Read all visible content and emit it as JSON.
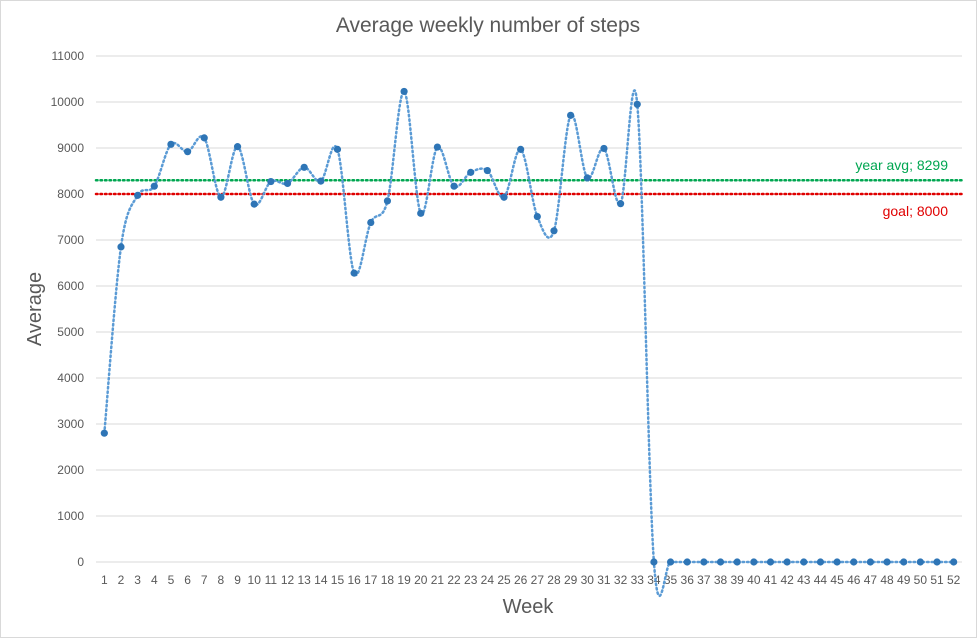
{
  "chart_data": {
    "type": "line",
    "title": "Average weekly number of steps",
    "xlabel": "Week",
    "ylabel": "Average",
    "ylim": [
      0,
      11000
    ],
    "y_ticks": [
      0,
      1000,
      2000,
      3000,
      4000,
      5000,
      6000,
      7000,
      8000,
      9000,
      10000,
      11000
    ],
    "grid": "horizontal",
    "categories": [
      "1",
      "2",
      "3",
      "4",
      "5",
      "6",
      "7",
      "8",
      "9",
      "10",
      "11",
      "12",
      "13",
      "14",
      "15",
      "16",
      "17",
      "18",
      "19",
      "20",
      "21",
      "22",
      "23",
      "24",
      "25",
      "26",
      "27",
      "28",
      "29",
      "30",
      "31",
      "32",
      "33",
      "34",
      "35",
      "36",
      "37",
      "38",
      "39",
      "40",
      "41",
      "42",
      "43",
      "44",
      "45",
      "46",
      "47",
      "48",
      "49",
      "50",
      "51",
      "52"
    ],
    "series": [
      {
        "color": "#2e75b6",
        "line_style": "dotted smooth",
        "values": [
          2800,
          6850,
          7970,
          8170,
          9080,
          8920,
          9220,
          7930,
          9030,
          7780,
          8270,
          8230,
          8580,
          8280,
          8970,
          6280,
          7380,
          7850,
          10230,
          7580,
          9020,
          8170,
          8470,
          8510,
          7930,
          8970,
          7510,
          7200,
          9710,
          8350,
          8990,
          7790,
          9950,
          0,
          0,
          0,
          0,
          0,
          0,
          0,
          0,
          0,
          0,
          0,
          0,
          0,
          0,
          0,
          0,
          0,
          0,
          0
        ]
      }
    ],
    "reference_lines": [
      {
        "label": "year avg; 8299",
        "value": 8299,
        "color": "#00a651"
      },
      {
        "label": "goal; 8000",
        "value": 8000,
        "color": "#e00000"
      }
    ]
  }
}
